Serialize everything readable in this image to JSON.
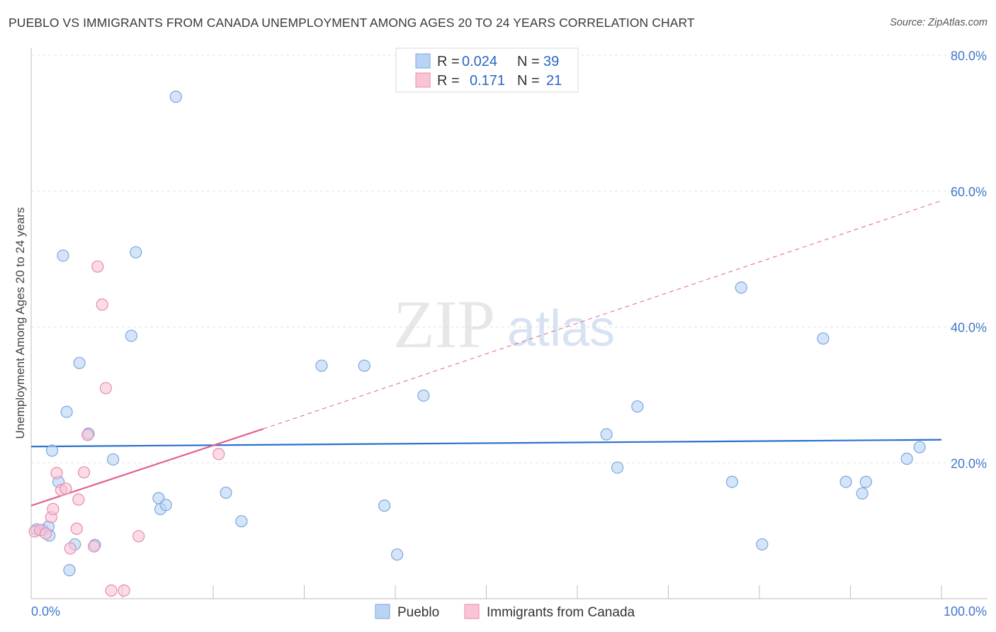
{
  "title": "PUEBLO VS IMMIGRANTS FROM CANADA UNEMPLOYMENT AMONG AGES 20 TO 24 YEARS CORRELATION CHART",
  "source": "Source: ZipAtlas.com",
  "watermark": {
    "zip": "ZIP",
    "atlas": "atlas"
  },
  "colors": {
    "pueblo_fill": "#b9d3f5",
    "pueblo_stroke": "#7aa6e0",
    "pueblo_line": "#2a6fcf",
    "canada_fill": "#f9c4d6",
    "canada_stroke": "#e88aaa",
    "canada_line": "#e2608e",
    "tick_text": "#3f78c9",
    "grid": "#e3e3e3"
  },
  "legend": {
    "rows": [
      {
        "r_label": "R =",
        "r_value": "0.024",
        "n_label": "N =",
        "n_value": "39"
      },
      {
        "r_label": "R =",
        "r_value": "0.171",
        "n_label": "N =",
        "n_value": "21"
      }
    ]
  },
  "chart_data": {
    "type": "scatter",
    "title": "PUEBLO VS IMMIGRANTS FROM CANADA UNEMPLOYMENT AMONG AGES 20 TO 24 YEARS CORRELATION CHART",
    "xlabel": "",
    "ylabel": "Unemployment Among Ages 20 to 24 years",
    "xlim": [
      0,
      100
    ],
    "ylim": [
      0,
      80
    ],
    "x_tick_labels": [
      "0.0%",
      "100.0%"
    ],
    "y_ticks": [
      20,
      40,
      60,
      80
    ],
    "y_tick_labels": [
      "20.0%",
      "40.0%",
      "60.0%",
      "80.0%"
    ],
    "grid": true,
    "series": [
      {
        "name": "Pueblo",
        "points": [
          [
            0.6,
            10.2
          ],
          [
            1.3,
            10.1
          ],
          [
            1.9,
            10.6
          ],
          [
            2.0,
            9.3
          ],
          [
            2.3,
            21.8
          ],
          [
            3.0,
            17.2
          ],
          [
            3.5,
            50.5
          ],
          [
            3.9,
            27.5
          ],
          [
            4.2,
            4.2
          ],
          [
            4.8,
            8.0
          ],
          [
            5.3,
            34.7
          ],
          [
            6.3,
            24.3
          ],
          [
            7.0,
            7.9
          ],
          [
            9.0,
            20.5
          ],
          [
            11.0,
            38.7
          ],
          [
            11.5,
            51.0
          ],
          [
            14.0,
            14.8
          ],
          [
            14.2,
            13.2
          ],
          [
            14.8,
            13.8
          ],
          [
            15.9,
            73.9
          ],
          [
            21.4,
            15.6
          ],
          [
            23.1,
            11.4
          ],
          [
            31.9,
            34.3
          ],
          [
            36.6,
            34.3
          ],
          [
            38.8,
            13.7
          ],
          [
            40.2,
            6.5
          ],
          [
            43.1,
            29.9
          ],
          [
            63.2,
            24.2
          ],
          [
            64.4,
            19.3
          ],
          [
            66.6,
            28.3
          ],
          [
            77.0,
            17.2
          ],
          [
            78.0,
            45.8
          ],
          [
            80.3,
            8.0
          ],
          [
            87.0,
            38.3
          ],
          [
            89.5,
            17.2
          ],
          [
            91.3,
            15.5
          ],
          [
            91.7,
            17.2
          ],
          [
            96.2,
            20.6
          ],
          [
            97.6,
            22.3
          ]
        ]
      },
      {
        "name": "Immigrants from Canada",
        "points": [
          [
            0.4,
            9.9
          ],
          [
            1.0,
            10.1
          ],
          [
            1.6,
            9.6
          ],
          [
            2.2,
            12.0
          ],
          [
            2.4,
            13.2
          ],
          [
            2.8,
            18.5
          ],
          [
            3.3,
            16.0
          ],
          [
            3.8,
            16.2
          ],
          [
            4.3,
            7.4
          ],
          [
            5.0,
            10.3
          ],
          [
            5.2,
            14.6
          ],
          [
            5.8,
            18.6
          ],
          [
            6.2,
            24.1
          ],
          [
            6.9,
            7.7
          ],
          [
            7.3,
            48.9
          ],
          [
            7.8,
            43.3
          ],
          [
            8.2,
            31.0
          ],
          [
            8.8,
            1.2
          ],
          [
            10.2,
            1.2
          ],
          [
            11.8,
            9.2
          ],
          [
            20.6,
            21.3
          ]
        ]
      }
    ],
    "trend_lines": [
      {
        "series": "Pueblo",
        "x": [
          0,
          100
        ],
        "y": [
          22.4,
          23.4
        ],
        "style": "solid"
      },
      {
        "series": "Immigrants from Canada",
        "x": [
          0,
          25.5
        ],
        "y": [
          13.7,
          25.0
        ],
        "style": "solid"
      },
      {
        "series": "Immigrants from Canada",
        "x": [
          25.5,
          100
        ],
        "y": [
          25.0,
          58.6
        ],
        "style": "dashed"
      }
    ]
  },
  "bottom_legend": [
    {
      "label": "Pueblo"
    },
    {
      "label": "Immigrants from Canada"
    }
  ]
}
